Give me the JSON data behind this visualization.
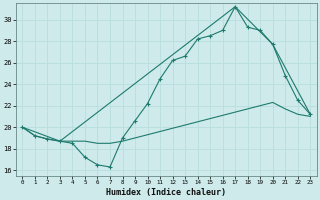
{
  "xlabel": "Humidex (Indice chaleur)",
  "bg_color": "#ceeaea",
  "line_color": "#1e7a6e",
  "grid_color": "#b8dede",
  "ylim": [
    15.5,
    31.5
  ],
  "xlim": [
    -0.5,
    23.5
  ],
  "yticks": [
    16,
    18,
    20,
    22,
    24,
    26,
    28,
    30
  ],
  "xticks": [
    0,
    1,
    2,
    3,
    4,
    5,
    6,
    7,
    8,
    9,
    10,
    11,
    12,
    13,
    14,
    15,
    16,
    17,
    18,
    19,
    20,
    21,
    22,
    23
  ],
  "line1_x": [
    0,
    1,
    2,
    3,
    4,
    5,
    6,
    7,
    8,
    9,
    10,
    11,
    12,
    13,
    14,
    15,
    16,
    17,
    18,
    19,
    20,
    21,
    22,
    23
  ],
  "line1_y": [
    20.0,
    19.2,
    18.9,
    18.7,
    18.5,
    17.2,
    16.5,
    16.3,
    19.0,
    20.6,
    22.2,
    24.5,
    26.2,
    26.6,
    28.2,
    28.5,
    29.0,
    31.2,
    29.3,
    29.0,
    27.7,
    24.8,
    22.5,
    21.2
  ],
  "line2_x": [
    0,
    1,
    2,
    3,
    4,
    5,
    6,
    7,
    8,
    9,
    10,
    11,
    12,
    13,
    14,
    15,
    16,
    17,
    18,
    19,
    20,
    21,
    22,
    23
  ],
  "line2_y": [
    20.0,
    19.2,
    18.9,
    18.7,
    18.7,
    18.7,
    18.5,
    18.5,
    18.7,
    19.0,
    19.3,
    19.6,
    19.9,
    20.2,
    20.5,
    20.8,
    21.1,
    21.4,
    21.7,
    22.0,
    22.3,
    21.7,
    21.2,
    21.0
  ],
  "line3_x": [
    0,
    3,
    17,
    20,
    23
  ],
  "line3_y": [
    20.0,
    18.7,
    31.2,
    27.7,
    21.2
  ]
}
